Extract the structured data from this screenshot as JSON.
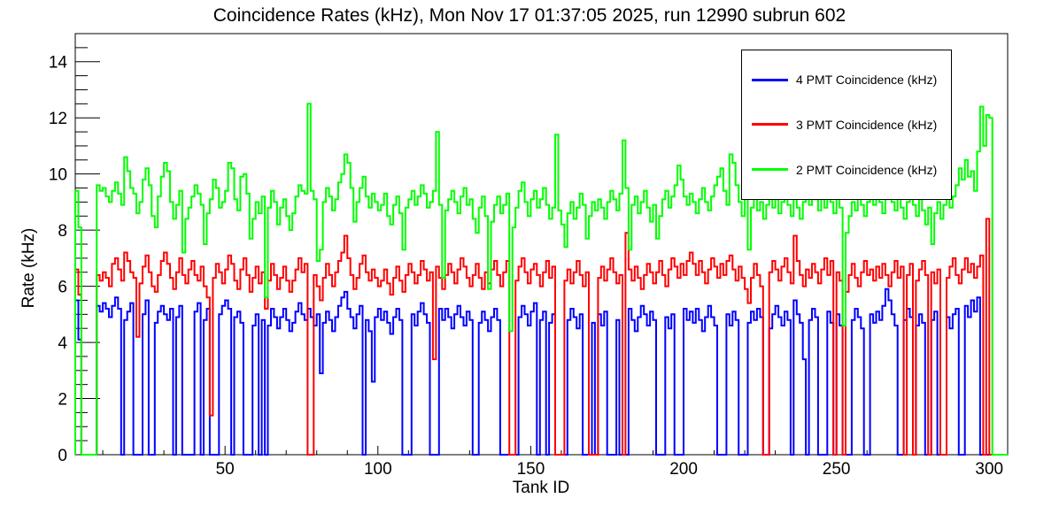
{
  "page": {
    "title": "Coincidence Rates (kHz), Mon Nov 17 01:37:05 2025, run 12990 subrun 602"
  },
  "chart_data": {
    "type": "line",
    "subtype": "step-histogram",
    "title": "Coincidence Rates (kHz), Mon Nov 17 01:37:05 2025, run 12990 subrun 602",
    "xlabel": "Tank ID",
    "ylabel": "Rate (kHz)",
    "xlim": [
      1,
      306
    ],
    "ylim": [
      0,
      15
    ],
    "xticks": [
      50,
      100,
      150,
      200,
      250,
      300
    ],
    "x_minor_step": 10,
    "yticks": [
      0,
      2,
      4,
      6,
      8,
      10,
      12,
      14
    ],
    "y_minor_step": 0.5,
    "grid": false,
    "legend_position": "top-right",
    "x_first_bin": 1,
    "bin_width": 1,
    "axis_color": "#000000",
    "series": [
      {
        "name": "4 PMT Coincidence (kHz)",
        "color": "#0000ff",
        "values": [
          5.5,
          4.1,
          0,
          0,
          0,
          0,
          0,
          5.3,
          5.1,
          5.4,
          5.2,
          4.9,
          5.3,
          5.6,
          5.2,
          0,
          4.8,
          5.1,
          5.4,
          0,
          0,
          0,
          5.0,
          5.5,
          0,
          0,
          4.7,
          5.1,
          5.3,
          5.0,
          4.8,
          5.2,
          0,
          4.9,
          5.3,
          0,
          0,
          0,
          0,
          5.1,
          5.4,
          0,
          4.8,
          5.2,
          0,
          0,
          0,
          5.0,
          5.3,
          5.5,
          5.2,
          0,
          4.9,
          5.1,
          4.7,
          0,
          0,
          0,
          4.6,
          5.0,
          0,
          4.8,
          0,
          4.6,
          5.2,
          4.9,
          4.5,
          4.9,
          5.2,
          4.8,
          4.4,
          4.7,
          5.1,
          5.4,
          5.0,
          4.8,
          5.2,
          4.9,
          4.6,
          5.0,
          2.9,
          4.7,
          5.1,
          4.8,
          4.4,
          4.9,
          5.3,
          5.6,
          5.8,
          5.2,
          4.9,
          4.5,
          5.0,
          5.3,
          0,
          4.8,
          4.4,
          2.6,
          4.9,
          5.2,
          4.8,
          5.1,
          4.7,
          4.3,
          4.9,
          5.2,
          4.8,
          0,
          0,
          0,
          5.0,
          4.6,
          5.1,
          5.4,
          5.0,
          4.7,
          0,
          0,
          0,
          5.2,
          4.8,
          5.2,
          4.9,
          4.5,
          5.0,
          5.3,
          4.9,
          4.6,
          5.1,
          4.8,
          0,
          0,
          4.7,
          5.1,
          4.8,
          4.4,
          4.9,
          5.2,
          4.8,
          0,
          0,
          0,
          0,
          0,
          0,
          4.9,
          5.3,
          5.0,
          4.6,
          5.1,
          5.4,
          0,
          4.8,
          5.1,
          0,
          4.7,
          5.0,
          0,
          0,
          0,
          0,
          4.8,
          5.2,
          4.9,
          4.5,
          5.0,
          0,
          0,
          0,
          4.7,
          0,
          5.0,
          4.6,
          5.1,
          0,
          0,
          0,
          4.8,
          0,
          0,
          0,
          5.2,
          4.8,
          4.4,
          4.9,
          5.3,
          5.0,
          4.6,
          5.1,
          4.8,
          0,
          0,
          0,
          4.9,
          4.5,
          5.0,
          0,
          0,
          0,
          5.2,
          4.8,
          5.1,
          4.7,
          5.2,
          4.8,
          4.4,
          4.9,
          5.3,
          4.9,
          4.6,
          0,
          0,
          0,
          5.0,
          4.6,
          5.1,
          4.8,
          0,
          0,
          0,
          4.7,
          5.1,
          4.8,
          5.2,
          4.9,
          0,
          0,
          4.5,
          5.0,
          5.3,
          4.9,
          4.6,
          5.1,
          4.8,
          0,
          5.5,
          5.0,
          4.7,
          3.4,
          0,
          4.8,
          5.2,
          4.9,
          0,
          0,
          0,
          5.1,
          4.7,
          0,
          5.0,
          4.6,
          0,
          0,
          0,
          4.8,
          5.2,
          4.9,
          4.5,
          0,
          0,
          5.0,
          4.7,
          5.1,
          4.8,
          5.3,
          5.9,
          5.5,
          5.0,
          4.6,
          0,
          0,
          4.8,
          5.2,
          4.9,
          0,
          4.6,
          5.0,
          4.7,
          0,
          0,
          4.8,
          5.1,
          0,
          0,
          0,
          4.9,
          4.5,
          5.0,
          5.2,
          0,
          0,
          5.3,
          4.9,
          5.5,
          5.1,
          5.6,
          0,
          0,
          0,
          0,
          0,
          0,
          0,
          0,
          0,
          0
        ]
      },
      {
        "name": "3 PMT Coincidence (kHz)",
        "color": "#ff0000",
        "values": [
          6.6,
          5.7,
          0,
          0,
          0,
          0,
          0,
          6.4,
          6.2,
          6.5,
          6.3,
          6.0,
          6.8,
          7.0,
          6.6,
          6.2,
          7.2,
          6.9,
          6.5,
          6.3,
          4.2,
          6.1,
          6.7,
          7.1,
          6.5,
          6.0,
          5.8,
          6.4,
          6.9,
          7.2,
          6.8,
          6.3,
          5.9,
          6.5,
          7.0,
          6.4,
          6.1,
          6.6,
          6.9,
          6.4,
          6.2,
          6.7,
          6.0,
          5.6,
          1.4,
          6.3,
          6.8,
          6.5,
          6.1,
          6.6,
          7.1,
          6.8,
          6.2,
          5.9,
          6.6,
          7.0,
          6.4,
          5.8,
          6.3,
          6.7,
          6.1,
          6.5,
          5.2,
          6.2,
          6.8,
          6.4,
          5.9,
          6.3,
          6.7,
          6.2,
          5.8,
          6.2,
          6.6,
          7.0,
          6.5,
          6.8,
          0,
          0,
          6.4,
          6.0,
          5.5,
          6.3,
          6.8,
          6.4,
          6.0,
          6.5,
          6.9,
          7.2,
          7.8,
          7.0,
          6.4,
          5.9,
          6.3,
          6.8,
          7.1,
          6.5,
          6.2,
          6.6,
          6.3,
          6.0,
          6.2,
          6.6,
          6.1,
          5.7,
          6.3,
          6.7,
          6.2,
          5.8,
          6.4,
          6.8,
          6.5,
          6.1,
          6.4,
          6.9,
          6.6,
          6.2,
          6.5,
          3.4,
          6.7,
          6.3,
          5.9,
          6.4,
          6.8,
          6.5,
          6.1,
          6.6,
          7.0,
          6.7,
          6.3,
          6.0,
          6.4,
          6.8,
          6.3,
          5.9,
          6.5,
          6.1,
          6.6,
          6.9,
          6.4,
          6.0,
          6.5,
          6.9,
          0,
          0,
          6.2,
          6.7,
          7.0,
          6.5,
          6.1,
          6.6,
          6.8,
          6.4,
          6.0,
          6.5,
          6.9,
          6.3,
          6.7,
          0,
          0,
          0,
          6.2,
          6.6,
          6.1,
          6.5,
          6.9,
          6.4,
          6.0,
          6.5,
          0,
          0,
          0,
          6.3,
          6.7,
          6.2,
          6.6,
          7.0,
          6.5,
          6.1,
          6.4,
          0,
          7.9,
          6.6,
          6.2,
          6.7,
          6.3,
          5.9,
          6.4,
          6.8,
          6.5,
          6.1,
          6.5,
          6.9,
          6.4,
          6.0,
          6.6,
          7.0,
          6.7,
          6.3,
          6.8,
          6.4,
          6.9,
          7.2,
          6.8,
          6.4,
          6.9,
          6.5,
          6.1,
          6.6,
          7.0,
          6.7,
          6.3,
          6.8,
          6.4,
          6.9,
          7.1,
          6.6,
          6.2,
          6.7,
          6.3,
          5.9,
          5.4,
          6.3,
          6.8,
          6.4,
          6.0,
          0,
          0,
          6.5,
          6.9,
          6.6,
          6.2,
          6.7,
          7.0,
          6.5,
          6.1,
          7.8,
          6.9,
          6.4,
          6.0,
          6.6,
          6.3,
          6.8,
          6.5,
          6.1,
          6.6,
          7.0,
          6.4,
          6.9,
          0,
          6.5,
          6.2,
          0,
          5.8,
          6.4,
          6.8,
          6.3,
          6.0,
          6.5,
          6.9,
          6.4,
          6.6,
          6.2,
          6.7,
          6.3,
          6.8,
          6.4,
          6.0,
          6.5,
          6.9,
          6.3,
          6.7,
          0,
          6.4,
          6.8,
          0,
          6.2,
          6.6,
          6.9,
          6.4,
          0,
          6.5,
          6.1,
          6.6,
          0,
          0,
          6.3,
          6.7,
          7.0,
          6.4,
          6.1,
          6.6,
          7.0,
          6.5,
          6.8,
          6.3,
          6.7,
          7.1,
          0,
          8.4,
          0,
          0,
          0,
          0,
          0,
          0,
          0
        ]
      },
      {
        "name": "2 PMT Coincidence (kHz)",
        "color": "#00ff00",
        "values": [
          9.4,
          8.1,
          0,
          0,
          0,
          0,
          0,
          9.6,
          9.4,
          9.5,
          9.2,
          9.0,
          9.4,
          9.7,
          9.3,
          8.9,
          10.6,
          10.1,
          9.5,
          9.3,
          8.6,
          9.0,
          9.8,
          10.2,
          9.6,
          8.5,
          8.1,
          9.2,
          9.9,
          10.4,
          10.1,
          9.0,
          8.4,
          8.9,
          9.4,
          7.2,
          8.4,
          8.8,
          9.2,
          9.6,
          9.3,
          8.9,
          7.5,
          8.6,
          9.1,
          9.8,
          9.5,
          8.8,
          9.0,
          9.4,
          10.4,
          10.2,
          9.1,
          8.7,
          9.9,
          10.0,
          9.3,
          7.7,
          8.4,
          9.0,
          8.6,
          9.2,
          5.6,
          8.8,
          9.4,
          9.0,
          8.2,
          8.8,
          9.1,
          8.5,
          8.0,
          8.6,
          9.2,
          9.6,
          9.4,
          9.3,
          12.5,
          9.4,
          9.1,
          6.9,
          7.3,
          9.0,
          9.5,
          9.2,
          8.7,
          9.1,
          9.7,
          10.0,
          10.7,
          10.4,
          9.5,
          8.3,
          9.0,
          9.5,
          9.9,
          9.2,
          8.8,
          9.3,
          9.0,
          8.7,
          8.9,
          9.3,
          8.5,
          8.2,
          8.9,
          9.2,
          8.6,
          7.3,
          8.8,
          9.1,
          9.4,
          8.9,
          9.2,
          9.6,
          9.3,
          8.8,
          9.0,
          9.4,
          11.5,
          8.9,
          6.3,
          8.7,
          9.1,
          9.4,
          9.0,
          8.6,
          9.2,
          9.5,
          8.9,
          9.1,
          8.4,
          7.9,
          8.8,
          9.2,
          8.5,
          5.9,
          8.3,
          8.9,
          9.2,
          8.6,
          8.9,
          9.3,
          4.4,
          8.1,
          8.8,
          9.4,
          9.7,
          9.0,
          8.5,
          9.1,
          9.4,
          8.8,
          9.1,
          9.5,
          8.9,
          8.4,
          8.8,
          11.4,
          8.7,
          8.2,
          7.4,
          8.6,
          9.0,
          8.4,
          8.8,
          9.3,
          8.9,
          7.7,
          8.5,
          9.0,
          8.7,
          9.1,
          8.8,
          8.4,
          9.0,
          9.4,
          9.1,
          8.7,
          9.3,
          11.2,
          9.5,
          7.3,
          8.9,
          9.2,
          8.6,
          9.0,
          9.4,
          8.8,
          8.3,
          8.9,
          7.7,
          8.5,
          9.1,
          9.4,
          8.8,
          9.2,
          9.6,
          10.3,
          9.8,
          9.2,
          8.9,
          9.3,
          9.0,
          8.6,
          9.1,
          9.5,
          9.0,
          8.7,
          9.2,
          9.6,
          9.9,
          10.2,
          9.4,
          8.9,
          10.7,
          10.4,
          9.6,
          9.0,
          8.5,
          9.1,
          7.3,
          8.8,
          9.2,
          8.7,
          9.0,
          8.4,
          8.9,
          9.3,
          8.8,
          9.1,
          8.6,
          9.0,
          9.4,
          8.9,
          8.5,
          9.2,
          8.8,
          8.4,
          9.0,
          9.3,
          8.9,
          9.5,
          9.1,
          8.7,
          9.2,
          8.8,
          9.4,
          9.0,
          8.6,
          9.1,
          8.8,
          4.6,
          7.9,
          8.5,
          9.0,
          8.7,
          9.2,
          8.9,
          8.5,
          9.0,
          9.3,
          8.9,
          9.4,
          9.0,
          8.6,
          9.1,
          9.5,
          9.0,
          8.7,
          9.2,
          8.8,
          8.4,
          9.0,
          9.3,
          8.9,
          8.5,
          9.1,
          8.7,
          8.2,
          8.8,
          7.5,
          8.6,
          9.0,
          8.4,
          8.9,
          9.3,
          8.8,
          9.2,
          9.6,
          10.2,
          9.8,
          10.5,
          9.9,
          10.1,
          9.4,
          10.8,
          12.4,
          11.0,
          12.1,
          12.0,
          0,
          0,
          0,
          0,
          0,
          0
        ]
      }
    ]
  }
}
